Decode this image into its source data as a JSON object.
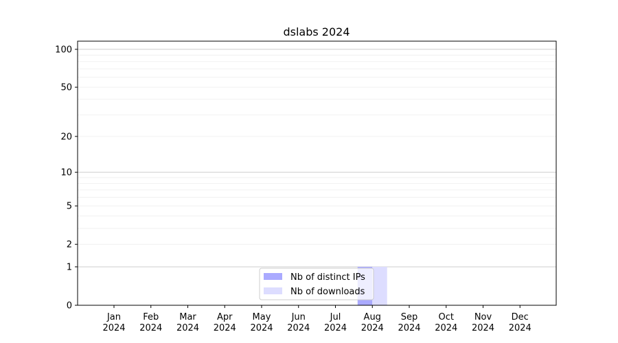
{
  "chart_data": {
    "type": "bar",
    "title": "dslabs 2024",
    "xlabel": "",
    "ylabel": "",
    "categories": [
      "Jan\n2024",
      "Feb\n2024",
      "Mar\n2024",
      "Apr\n2024",
      "May\n2024",
      "Jun\n2024",
      "Jul\n2024",
      "Aug\n2024",
      "Sep\n2024",
      "Oct\n2024",
      "Nov\n2024",
      "Dec\n2024"
    ],
    "y_scale": "log(1+x)",
    "ylim": [
      0,
      116
    ],
    "y_ticks": [
      0,
      1,
      2,
      5,
      10,
      20,
      50,
      100
    ],
    "grid": true,
    "legend_position": "bottom-center",
    "series": [
      {
        "name": "Nb of distinct IPs",
        "color": "#aaaaff",
        "values": [
          0,
          0,
          0,
          0,
          0,
          0,
          0,
          1,
          0,
          0,
          0,
          0
        ]
      },
      {
        "name": "Nb of downloads",
        "color": "#ddddff",
        "values": [
          0,
          0,
          0,
          0,
          0,
          0,
          0,
          1,
          0,
          0,
          0,
          0
        ]
      }
    ]
  }
}
